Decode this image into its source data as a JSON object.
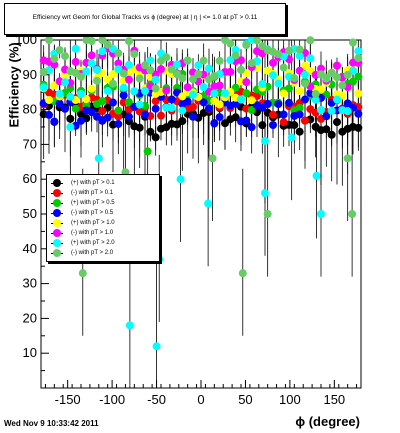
{
  "title": "Efficiency wrt Geom for Global Tracks vs ϕ (degree) at | η | <= 1.0 at pT > 0.11",
  "footer": "Wed Nov  9 10:33:42 2011",
  "chart_data": {
    "type": "scatter",
    "xlabel": "ϕ (degree)",
    "ylabel": "Efficiency (%)",
    "xlim": [
      -180,
      180
    ],
    "ylim": [
      0,
      100
    ],
    "xticks": [
      -150,
      -100,
      -50,
      0,
      50,
      100,
      150
    ],
    "yticks": [
      10,
      20,
      30,
      40,
      50,
      60,
      70,
      80,
      90,
      100
    ],
    "legend_position": "middle-left",
    "series": [
      {
        "name": "(+) with pT > 0.1",
        "color": "#000000",
        "base": 77,
        "spread": 3
      },
      {
        "name": "(-) with pT > 0.1",
        "color": "#ff0000",
        "base": 81,
        "spread": 3
      },
      {
        "name": "(+) with pT > 0.5",
        "color": "#00cc00",
        "base": 85,
        "spread": 4
      },
      {
        "name": "(-) with pT > 0.5",
        "color": "#0000ff",
        "base": 80,
        "spread": 4
      },
      {
        "name": "(+) with pT > 1.0",
        "color": "#ffff00",
        "base": 88,
        "spread": 5
      },
      {
        "name": "(-) with pT > 1.0",
        "color": "#ff00ff",
        "base": 91,
        "spread": 5
      },
      {
        "name": "(+) with pT > 2.0",
        "color": "#00ffff",
        "base": 90,
        "spread": 9
      },
      {
        "name": "(-) with pT > 2.0",
        "color": "#66cc66",
        "base": 94,
        "spread": 8
      }
    ],
    "outliers": [
      {
        "series": 6,
        "x": -147,
        "y": 75
      },
      {
        "series": 6,
        "x": -115,
        "y": 66
      },
      {
        "series": 6,
        "x": -80,
        "y": 18
      },
      {
        "series": 6,
        "x": -50,
        "y": 12
      },
      {
        "series": 6,
        "x": -47,
        "y": 37
      },
      {
        "series": 6,
        "x": -23,
        "y": 60
      },
      {
        "series": 6,
        "x": 8,
        "y": 53
      },
      {
        "series": 6,
        "x": 72,
        "y": 71
      },
      {
        "series": 6,
        "x": 72,
        "y": 56
      },
      {
        "series": 6,
        "x": 102,
        "y": 72
      },
      {
        "series": 6,
        "x": 130,
        "y": 61
      },
      {
        "series": 6,
        "x": 135,
        "y": 50
      },
      {
        "series": 7,
        "x": -133,
        "y": 33
      },
      {
        "series": 7,
        "x": -85,
        "y": 62
      },
      {
        "series": 7,
        "x": 13,
        "y": 66
      },
      {
        "series": 7,
        "x": 47,
        "y": 33
      },
      {
        "series": 7,
        "x": 75,
        "y": 50
      },
      {
        "series": 7,
        "x": 170,
        "y": 50
      },
      {
        "series": 7,
        "x": 165,
        "y": 66
      },
      {
        "series": 2,
        "x": -60,
        "y": 68
      }
    ]
  }
}
